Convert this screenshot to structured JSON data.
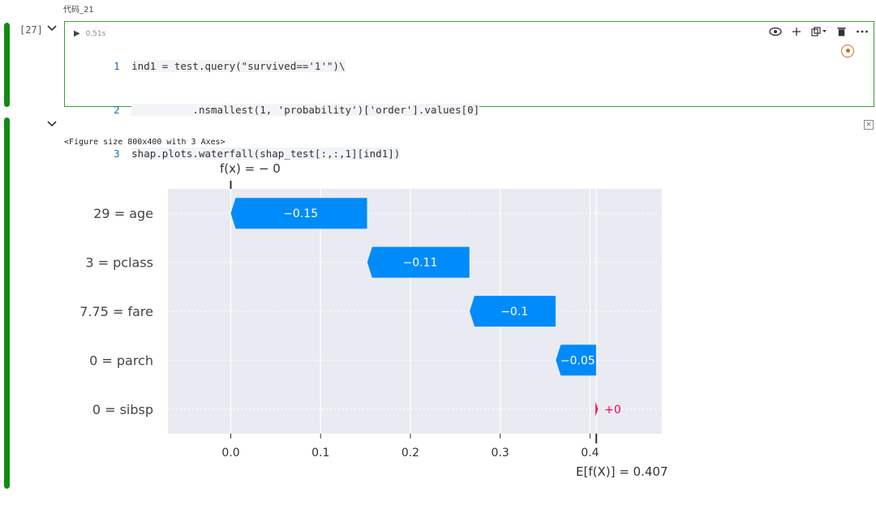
{
  "cell": {
    "title": "代码_21",
    "exec_count": "[27]",
    "run_time": "0.51s",
    "code_lines": [
      {
        "n": "1",
        "text": "ind1 = test.query(\"survived=='1'\")\\"
      },
      {
        "n": "2",
        "text": "          .nsmallest(1, 'probability')['order'].values[0]"
      },
      {
        "n": "3",
        "text": "shap.plots.waterfall(shap_test[:,:,1][ind1])"
      }
    ],
    "toolbar": {
      "icons": [
        "eye-icon",
        "add-icon",
        "copy-icon",
        "delete-icon",
        "more-icon"
      ]
    }
  },
  "output": {
    "figure_text": "<Figure size 800x400 with 3 Axes>"
  },
  "chart_data": {
    "type": "waterfall",
    "fx_label": "f(x) = − 0",
    "ex_label": "E[f(X)] = 0.407",
    "base_value": 0.407,
    "final_value": 0,
    "xlim": [
      -0.07,
      0.48
    ],
    "xticks": [
      "0.0",
      "0.1",
      "0.2",
      "0.3",
      "0.4"
    ],
    "xtick_values": [
      0.0,
      0.1,
      0.2,
      0.3,
      0.4
    ],
    "features": [
      {
        "label": "29 = age",
        "value": -0.15,
        "text": "−0.15",
        "start": 0.152,
        "end": 0.0
      },
      {
        "label": "3 = pclass",
        "value": -0.11,
        "text": "−0.11",
        "start": 0.266,
        "end": 0.152
      },
      {
        "label": "7.75 = fare",
        "value": -0.1,
        "text": "−0.1",
        "start": 0.362,
        "end": 0.266
      },
      {
        "label": "0 = parch",
        "value": -0.05,
        "text": "−0.05",
        "start": 0.407,
        "end": 0.362
      },
      {
        "label": "0 = sibsp",
        "value": 0,
        "text": "+0",
        "start": 0.407,
        "end": 0.407
      }
    ],
    "colors": {
      "negative": "#008bfb",
      "positive": "#ff0051",
      "plot_bg": "#eaeaf2"
    }
  }
}
